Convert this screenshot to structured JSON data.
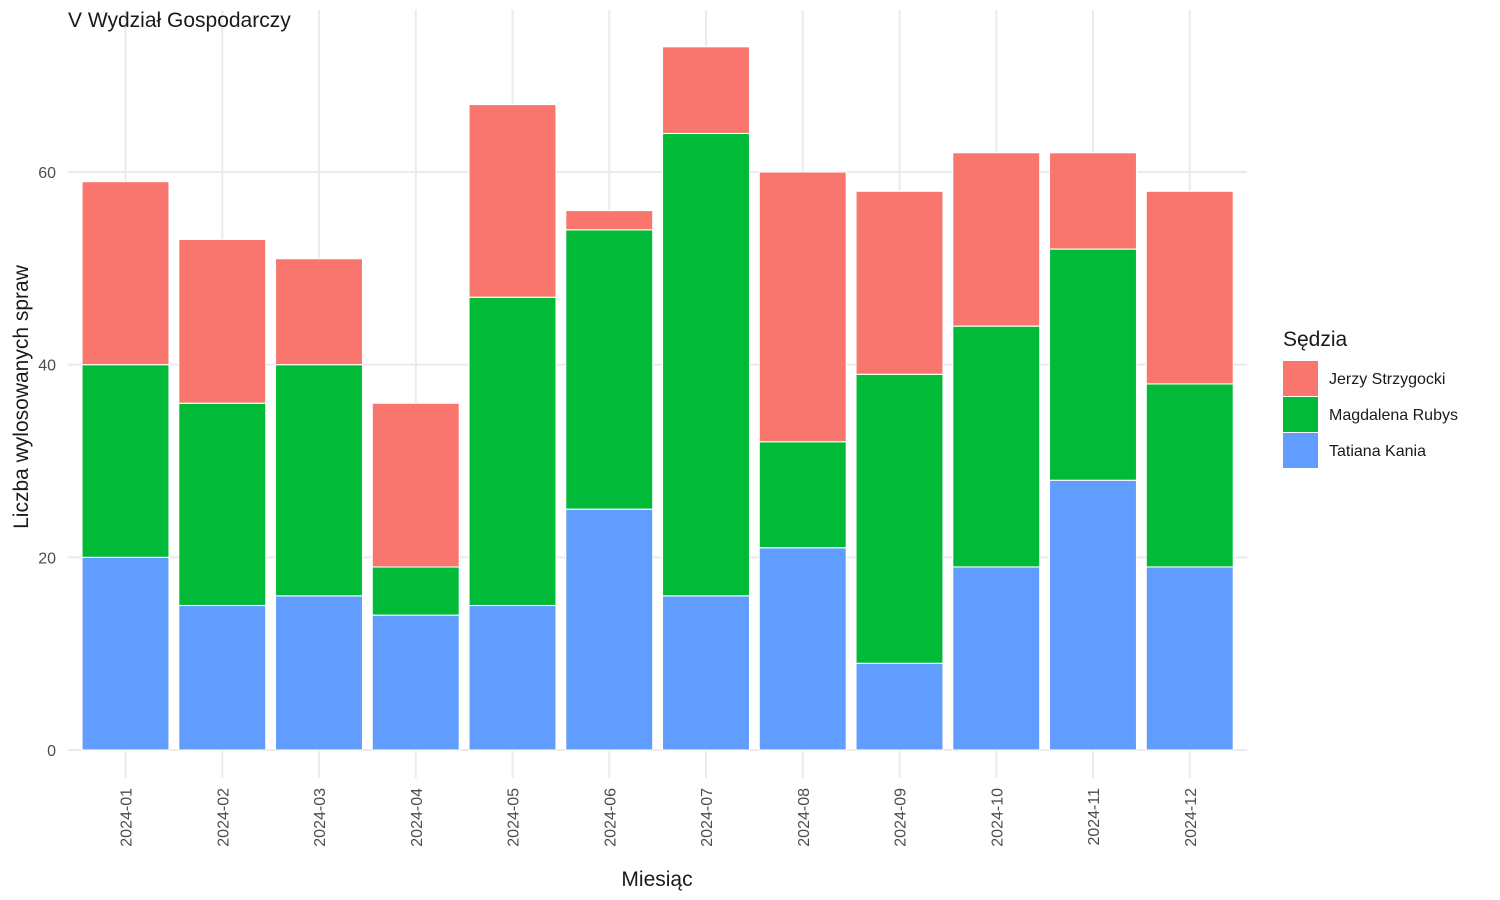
{
  "chart_data": {
    "type": "bar",
    "stacked": true,
    "title": "V Wydział Gospodarczy",
    "xlabel": "Miesiąc",
    "ylabel": "Liczba wylosowanych spraw",
    "ylim": [
      0,
      75
    ],
    "yticks": [
      0,
      20,
      40,
      60
    ],
    "grid": true,
    "legend": {
      "title": "Sędzia",
      "position": "right"
    },
    "categories": [
      "2024-01",
      "2024-02",
      "2024-03",
      "2024-04",
      "2024-05",
      "2024-06",
      "2024-07",
      "2024-08",
      "2024-09",
      "2024-10",
      "2024-11",
      "2024-12"
    ],
    "series": [
      {
        "name": "Tatiana Kania",
        "color": "#619CFF",
        "values": [
          20,
          15,
          16,
          14,
          15,
          25,
          16,
          21,
          9,
          19,
          28,
          19
        ]
      },
      {
        "name": "Magdalena Rubys",
        "color": "#00BA38",
        "values": [
          20,
          21,
          24,
          5,
          32,
          29,
          48,
          11,
          30,
          25,
          24,
          19
        ]
      },
      {
        "name": "Jerzy Strzygocki",
        "color": "#F8766D",
        "values": [
          19,
          17,
          11,
          17,
          20,
          2,
          9,
          28,
          19,
          18,
          10,
          20
        ]
      }
    ],
    "legend_order": [
      "Jerzy Strzygocki",
      "Magdalena Rubys",
      "Tatiana Kania"
    ]
  }
}
